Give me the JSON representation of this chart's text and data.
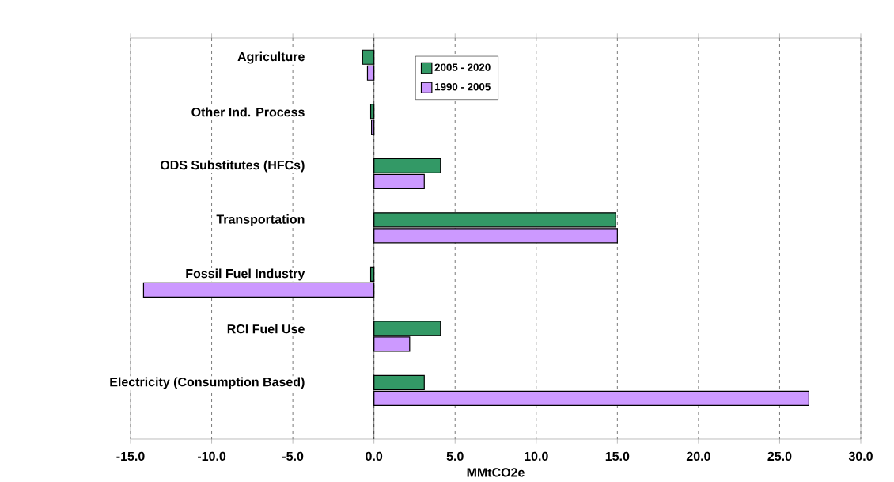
{
  "chart_data": {
    "type": "bar",
    "orientation": "horizontal",
    "xlabel": "MMtCO2e",
    "categories": [
      "Agriculture",
      "Other Ind. Process",
      "ODS Substitutes (HFCs)",
      "Transportation",
      "Fossil Fuel Industry",
      "RCI Fuel Use",
      "Electricity (Consumption Based)"
    ],
    "series": [
      {
        "name": "2005 - 2020",
        "color": "#339966",
        "values": [
          -0.7,
          -0.2,
          4.1,
          14.9,
          -0.2,
          4.1,
          3.1
        ]
      },
      {
        "name": "1990 - 2005",
        "color": "#cc99ff",
        "values": [
          -0.4,
          -0.15,
          3.1,
          15.0,
          -14.2,
          2.2,
          26.8
        ]
      }
    ],
    "xlim": [
      -15,
      30
    ],
    "xticks": [
      {
        "value": -15,
        "label": "-15.0"
      },
      {
        "value": -10,
        "label": "-10.0"
      },
      {
        "value": -5,
        "label": "-5.0"
      },
      {
        "value": 0,
        "label": "0.0"
      },
      {
        "value": 5,
        "label": "5.0"
      },
      {
        "value": 10,
        "label": "10.0"
      },
      {
        "value": 15,
        "label": "15.0"
      },
      {
        "value": 20,
        "label": "20.0"
      },
      {
        "value": 25,
        "label": "25.0"
      },
      {
        "value": 30,
        "label": "30.0"
      }
    ],
    "grid": "x",
    "legend": "top"
  }
}
